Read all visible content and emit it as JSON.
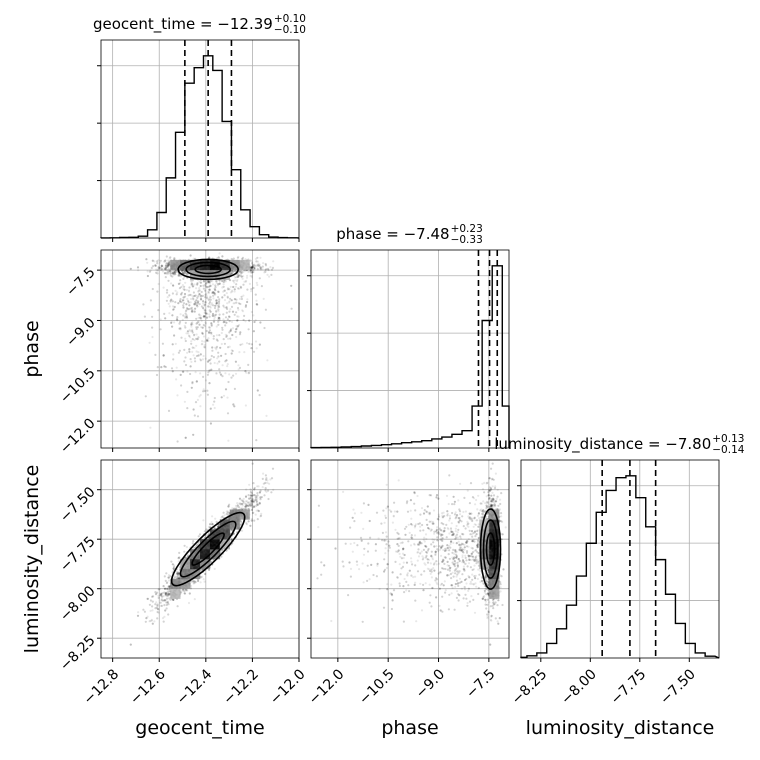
{
  "chart_data": {
    "type": "corner",
    "parameters": [
      {
        "name": "geocent_time",
        "axis_label": "geocent_time",
        "range": [
          -12.85,
          -12.0
        ],
        "ticks": [
          -12.8,
          -12.6,
          -12.4,
          -12.2,
          -12.0
        ],
        "tick_labels": [
          "−12.8",
          "−12.6",
          "−12.4",
          "−12.2",
          "−12.0"
        ]
      },
      {
        "name": "phase",
        "axis_label": "phase",
        "range": [
          -12.8,
          -6.9
        ],
        "ticks": [
          -12.0,
          -10.5,
          -9.0,
          -7.5
        ],
        "tick_labels": [
          "−12.0",
          "−10.5",
          "−9.0",
          "−7.5"
        ]
      },
      {
        "name": "luminosity_distance",
        "axis_label": "luminosity_distance",
        "range": [
          -8.35,
          -7.35
        ],
        "ticks": [
          -8.25,
          -8.0,
          -7.75,
          -7.5
        ],
        "tick_labels": [
          "−8.25",
          "−8.00",
          "−7.75",
          "−7.50"
        ]
      }
    ],
    "diagonal_titles": [
      {
        "parameter": "geocent_time",
        "prefix": "geocent_time = ",
        "median": "−12.39",
        "upper": "+0.10",
        "lower": "−0.10"
      },
      {
        "parameter": "phase",
        "prefix": "phase = ",
        "median": "−7.48",
        "upper": "+0.23",
        "lower": "−0.33"
      },
      {
        "parameter": "luminosity_distance",
        "prefix": "luminosity_distance = ",
        "median": "−7.80",
        "upper": "+0.13",
        "lower": "−0.14"
      }
    ],
    "quantiles": {
      "geocent_time": [
        -12.49,
        -12.39,
        -12.29
      ],
      "phase": [
        -7.81,
        -7.48,
        -7.25
      ],
      "luminosity_distance": [
        -7.94,
        -7.8,
        -7.67
      ]
    },
    "histograms": {
      "geocent_time": {
        "edges": [
          -12.85,
          -12.81,
          -12.77,
          -12.73,
          -12.69,
          -12.65,
          -12.61,
          -12.57,
          -12.53,
          -12.49,
          -12.45,
          -12.41,
          -12.37,
          -12.33,
          -12.29,
          -12.25,
          -12.21,
          -12.17,
          -12.13,
          -12.09,
          -12.05,
          -12.01
        ],
        "counts": [
          0.5,
          1,
          3,
          4,
          10,
          45,
          140,
          330,
          580,
          850,
          935,
          1000,
          920,
          640,
          375,
          155,
          62,
          18,
          5,
          2,
          1
        ]
      },
      "phase": {
        "edges": [
          -12.8,
          -12.5,
          -12.2,
          -11.9,
          -11.6,
          -11.3,
          -11.0,
          -10.7,
          -10.4,
          -10.1,
          -9.8,
          -9.5,
          -9.2,
          -8.9,
          -8.6,
          -8.3,
          -8.0,
          -7.7,
          -7.4,
          -7.1,
          -6.8
        ],
        "counts": [
          2,
          3,
          4,
          6,
          8,
          11,
          14,
          18,
          23,
          29,
          34,
          40,
          50,
          60,
          75,
          95,
          230,
          700,
          1000,
          230
        ]
      },
      "luminosity_distance": {
        "edges": [
          -8.37,
          -8.32,
          -8.27,
          -8.22,
          -8.17,
          -8.12,
          -8.07,
          -8.02,
          -7.97,
          -7.92,
          -7.87,
          -7.82,
          -7.77,
          -7.72,
          -7.67,
          -7.62,
          -7.57,
          -7.52,
          -7.47,
          -7.42,
          -7.37
        ],
        "counts": [
          4,
          12,
          28,
          80,
          160,
          290,
          450,
          630,
          800,
          920,
          990,
          1000,
          880,
          720,
          540,
          350,
          190,
          80,
          28,
          10
        ]
      }
    },
    "grid": true,
    "sample_count": 4000
  }
}
